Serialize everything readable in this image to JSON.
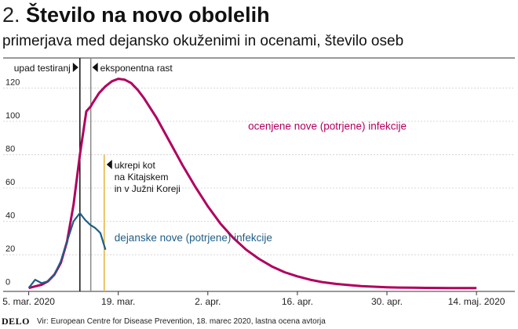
{
  "header": {
    "number": "2.",
    "title": "Število na novo obolelih",
    "subtitle": "primerjava med dejansko okuženimi in ocenami, število oseb"
  },
  "footer": {
    "brand": "DELO",
    "source": "Vir: European Centre for Disease Prevention, 18. marec 2020, lastna ocena avtorja"
  },
  "chart_data": {
    "type": "line",
    "title": "",
    "xlabel": "",
    "ylabel": "",
    "x_ticks": [
      "5. mar. 2020",
      "19. mar.",
      "2. apr.",
      "16. apr.",
      "30. apr.",
      "14. maj. 2020"
    ],
    "x_tick_days": [
      0,
      14,
      28,
      42,
      56,
      70
    ],
    "x_range_days": [
      -4,
      76
    ],
    "y_ticks": [
      0,
      20,
      40,
      60,
      80,
      100,
      120
    ],
    "ylim": [
      -2,
      138
    ],
    "grid": "horizontal",
    "series": [
      {
        "name": "ocenjene nove (potrjene) infekcije",
        "color": "#b0005e",
        "x": [
          0,
          1,
          2,
          3,
          4,
          5,
          6,
          7,
          8,
          9,
          9.7,
          10,
          11,
          12,
          13,
          14,
          15,
          16,
          17,
          18,
          20,
          22,
          24,
          26,
          28,
          30,
          32,
          34,
          36,
          38,
          40,
          42,
          44,
          46,
          48,
          50,
          52,
          54,
          56,
          58,
          60,
          62,
          64,
          66,
          68,
          70
        ],
        "values": [
          0,
          1,
          2,
          4,
          8,
          15,
          28,
          50,
          80,
          106,
          109,
          111,
          117,
          121,
          124,
          125.5,
          125,
          123,
          119,
          114,
          102,
          88,
          74,
          61,
          49,
          38.5,
          30,
          23,
          17.5,
          13,
          9.5,
          7,
          5,
          3.5,
          2.5,
          1.8,
          1.2,
          0.8,
          0.5,
          0.3,
          0.2,
          0.1,
          0.05,
          0,
          0,
          0
        ]
      },
      {
        "name": "dejanske nove (potrjene) infekcije",
        "color": "#1f5d86",
        "x": [
          0,
          1,
          2,
          3,
          4,
          5,
          6,
          7,
          8,
          8.8,
          9.6,
          10.4,
          11.2,
          12
        ],
        "values": [
          0,
          5,
          3,
          4,
          8,
          16,
          28,
          40,
          45,
          41,
          38,
          36,
          33,
          23
        ]
      }
    ],
    "annotations": [
      {
        "label": "upad testiranj",
        "day": 8,
        "color": "#111111"
      },
      {
        "label": "eksponentna rast",
        "day": 9.7,
        "color": "#888888"
      },
      {
        "label": "ukrepi kot na Kitajskem in v Južni Koreji",
        "lines": [
          "ukrepi kot",
          "na Kitajskem",
          "in v Južni Koreji"
        ],
        "day": 11.8,
        "color": "#e6b33a"
      }
    ]
  }
}
